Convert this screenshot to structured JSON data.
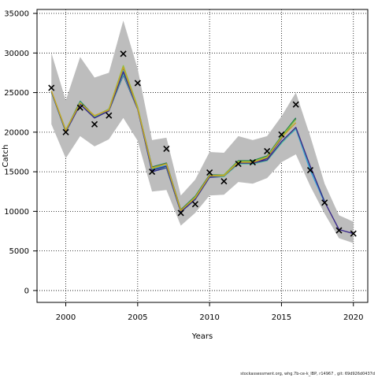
{
  "chart_data": {
    "type": "line",
    "xlabel": "Years",
    "ylabel": "Catch",
    "xlim": [
      1998,
      2021
    ],
    "ylim": [
      -1500,
      35500
    ],
    "xticks": [
      2000,
      2005,
      2010,
      2015,
      2020
    ],
    "yticks": [
      0,
      5000,
      10000,
      15000,
      20000,
      25000,
      30000,
      35000
    ],
    "grid": true,
    "band": {
      "x": [
        1999,
        2000,
        2001,
        2002,
        2003,
        2004,
        2005,
        2006,
        2007,
        2008,
        2009,
        2010,
        2011,
        2012,
        2013,
        2014,
        2015,
        2016,
        2017,
        2018,
        2019,
        2020
      ],
      "lower": [
        21000,
        16700,
        19500,
        18200,
        19100,
        21800,
        18900,
        12500,
        12700,
        8200,
        9800,
        12000,
        12100,
        13700,
        13500,
        14200,
        16200,
        17200,
        13200,
        9700,
        6600,
        6000
      ],
      "upper": [
        30000,
        24000,
        29500,
        26900,
        27500,
        34100,
        28000,
        19000,
        19300,
        12000,
        14000,
        17500,
        17400,
        19500,
        19000,
        19500,
        22000,
        25000,
        19500,
        13500,
        9500,
        8700
      ],
      "color": "#bdbdbd"
    },
    "series": [
      {
        "x": [
          1999,
          2000,
          2001,
          2002,
          2003,
          2004,
          2005,
          2006,
          2007,
          2008,
          2009,
          2010,
          2011,
          2012,
          2013,
          2014,
          2015,
          2016
        ],
        "values": [
          25100,
          20000,
          23500,
          21800,
          22700,
          27200,
          22900,
          15000,
          15500,
          9900,
          11500,
          14300,
          14400,
          16200,
          16000,
          16700,
          19200,
          21700
        ],
        "color": "#2f2f8f"
      },
      {
        "x": [
          1999,
          2000,
          2001,
          2002,
          2003,
          2004,
          2005,
          2006,
          2007,
          2008,
          2009,
          2010,
          2011,
          2012,
          2013,
          2014,
          2015,
          2016
        ],
        "values": [
          25100,
          20200,
          23900,
          22000,
          22900,
          28100,
          23100,
          15600,
          16100,
          10200,
          11900,
          14600,
          14600,
          16400,
          16400,
          17000,
          19500,
          21800
        ],
        "color": "#1f7a52"
      },
      {
        "x": [
          1999,
          2000,
          2001,
          2002,
          2003,
          2004,
          2005,
          2006,
          2007,
          2008,
          2009,
          2010,
          2011,
          2012,
          2013,
          2014,
          2015,
          2016,
          2017,
          2018
        ],
        "values": [
          25000,
          20100,
          23700,
          21900,
          22800,
          27700,
          23000,
          15300,
          15800,
          10000,
          11700,
          14400,
          14400,
          16100,
          16000,
          16500,
          18700,
          20400,
          15200,
          11100
        ],
        "color": "#3aa0d8"
      },
      {
        "x": [
          1999,
          2000,
          2001,
          2002,
          2003,
          2004,
          2005,
          2006,
          2007,
          2008,
          2009,
          2010,
          2011,
          2012,
          2013,
          2014,
          2015,
          2016,
          2017,
          2018
        ],
        "values": [
          25100,
          20000,
          23800,
          21800,
          22700,
          27300,
          23000,
          15200,
          15600,
          10000,
          11600,
          14400,
          14400,
          16000,
          16000,
          16400,
          18600,
          20500,
          15600,
          11300
        ],
        "color": "#4fbfa0"
      },
      {
        "x": [
          1999,
          2000,
          2001,
          2002,
          2003,
          2004,
          2005,
          2006,
          2007,
          2008,
          2009,
          2010,
          2011,
          2012,
          2013,
          2014,
          2015,
          2016,
          2017,
          2018,
          2019,
          2020
        ],
        "values": [
          25100,
          20100,
          23600,
          21800,
          22700,
          27600,
          23000,
          15200,
          15700,
          10000,
          11600,
          14400,
          14500,
          16100,
          16100,
          16500,
          18800,
          20600,
          15700,
          11200,
          7700,
          7200
        ],
        "color": "#3c2a8a"
      },
      {
        "x": [
          1999,
          2000,
          2001,
          2002,
          2003,
          2004,
          2005,
          2006,
          2007,
          2008,
          2009,
          2010,
          2011,
          2012,
          2013,
          2014,
          2015,
          2016
        ],
        "values": [
          25200,
          20300,
          23700,
          22000,
          22900,
          28400,
          23200,
          15400,
          16000,
          10100,
          11800,
          14500,
          14600,
          16300,
          16300,
          16900,
          19400,
          21600
        ],
        "color": "#8cc63f"
      },
      {
        "x": [
          1999,
          2000,
          2001,
          2002,
          2003,
          2004,
          2005,
          2006,
          2007,
          2008,
          2009,
          2010,
          2011,
          2012,
          2013,
          2014,
          2015,
          2016
        ],
        "values": [
          25200,
          20200,
          23700,
          22100,
          22800,
          28200,
          23000,
          15500,
          16000,
          10100,
          11700,
          14500,
          14500,
          16200,
          16200,
          16800,
          19300,
          21200
        ],
        "color": "#c9a227"
      }
    ],
    "observations": {
      "x": [
        1999,
        2000,
        2001,
        2002,
        2003,
        2004,
        2005,
        2006,
        2007,
        2008,
        2009,
        2010,
        2011,
        2012,
        2013,
        2014,
        2015,
        2016,
        2017,
        2018,
        2019,
        2020
      ],
      "values": [
        25600,
        20000,
        23100,
        21000,
        22100,
        29900,
        26200,
        15000,
        17900,
        9800,
        10900,
        14900,
        13800,
        16000,
        16200,
        17600,
        19700,
        23500,
        15200,
        11100,
        7600,
        7200
      ],
      "marker": "x"
    }
  },
  "footer": {
    "text": "stockassessment.org, whg.7b-ce-k_IBP, r14967 , git: 69d926d0437d"
  }
}
